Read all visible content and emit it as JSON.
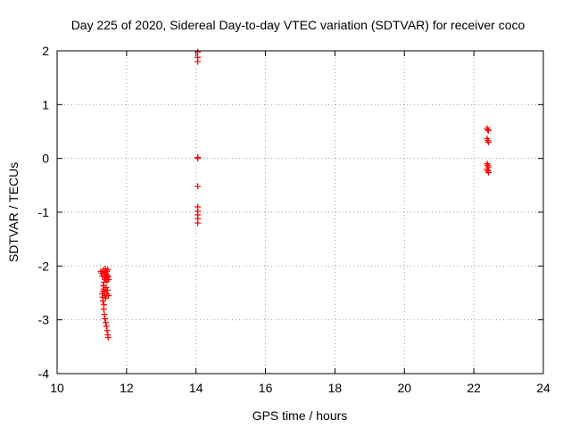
{
  "chart_data": {
    "type": "scatter",
    "title": "Day 225 of 2020, Sidereal Day-to-day VTEC variation (SDTVAR) for receiver coco",
    "xlabel": "GPS time / hours",
    "ylabel": "SDTVAR / TECUs",
    "xlim": [
      10,
      24
    ],
    "ylim": [
      -4,
      2
    ],
    "grid": true,
    "xticks": [
      "10",
      "12",
      "14",
      "16",
      "18",
      "20",
      "22",
      "24"
    ],
    "yticks": [
      "2",
      "1",
      "0",
      "-1",
      "-2",
      "-3",
      "-4"
    ],
    "marker": "plus",
    "color": "#ff0000",
    "series": [
      {
        "name": "SDTVAR",
        "points": [
          [
            11.26,
            -2.1
          ],
          [
            11.28,
            -2.13
          ],
          [
            11.3,
            -2.18
          ],
          [
            11.3,
            -2.52
          ],
          [
            11.31,
            -2.58
          ],
          [
            11.32,
            -2.47
          ],
          [
            11.32,
            -2.65
          ],
          [
            11.33,
            -2.08
          ],
          [
            11.33,
            -2.37
          ],
          [
            11.34,
            -2.43
          ],
          [
            11.34,
            -2.8
          ],
          [
            11.35,
            -2.72
          ],
          [
            11.35,
            -2.3
          ],
          [
            11.36,
            -2.2
          ],
          [
            11.36,
            -2.9
          ],
          [
            11.37,
            -2.55
          ],
          [
            11.37,
            -2.48
          ],
          [
            11.38,
            -2.98
          ],
          [
            11.38,
            -2.25
          ],
          [
            11.39,
            -2.12
          ],
          [
            11.39,
            -2.05
          ],
          [
            11.4,
            -3.05
          ],
          [
            11.4,
            -2.6
          ],
          [
            11.41,
            -2.4
          ],
          [
            11.41,
            -2.15
          ],
          [
            11.42,
            -3.12
          ],
          [
            11.42,
            -2.22
          ],
          [
            11.43,
            -2.52
          ],
          [
            11.43,
            -2.1
          ],
          [
            11.44,
            -3.2
          ],
          [
            11.44,
            -2.28
          ],
          [
            11.45,
            -2.18
          ],
          [
            11.45,
            -2.45
          ],
          [
            11.46,
            -3.28
          ],
          [
            11.46,
            -2.07
          ],
          [
            11.47,
            -3.33
          ],
          [
            11.47,
            -2.2
          ],
          [
            11.48,
            -2.55
          ],
          [
            11.48,
            -2.25
          ],
          [
            14.05,
            1.98
          ],
          [
            14.05,
            1.88
          ],
          [
            14.05,
            1.8
          ],
          [
            14.05,
            0.02
          ],
          [
            14.05,
            0.0
          ],
          [
            14.05,
            -0.52
          ],
          [
            14.05,
            -0.9
          ],
          [
            14.05,
            -0.98
          ],
          [
            14.05,
            -1.05
          ],
          [
            14.05,
            -1.12
          ],
          [
            14.05,
            -1.2
          ],
          [
            22.38,
            0.56
          ],
          [
            22.4,
            0.53
          ],
          [
            22.42,
            0.52
          ],
          [
            22.38,
            0.37
          ],
          [
            22.4,
            0.33
          ],
          [
            22.42,
            0.3
          ],
          [
            22.38,
            -0.1
          ],
          [
            22.4,
            -0.13
          ],
          [
            22.42,
            -0.16
          ],
          [
            22.38,
            -0.2
          ],
          [
            22.4,
            -0.23
          ],
          [
            22.42,
            -0.26
          ]
        ]
      }
    ]
  }
}
